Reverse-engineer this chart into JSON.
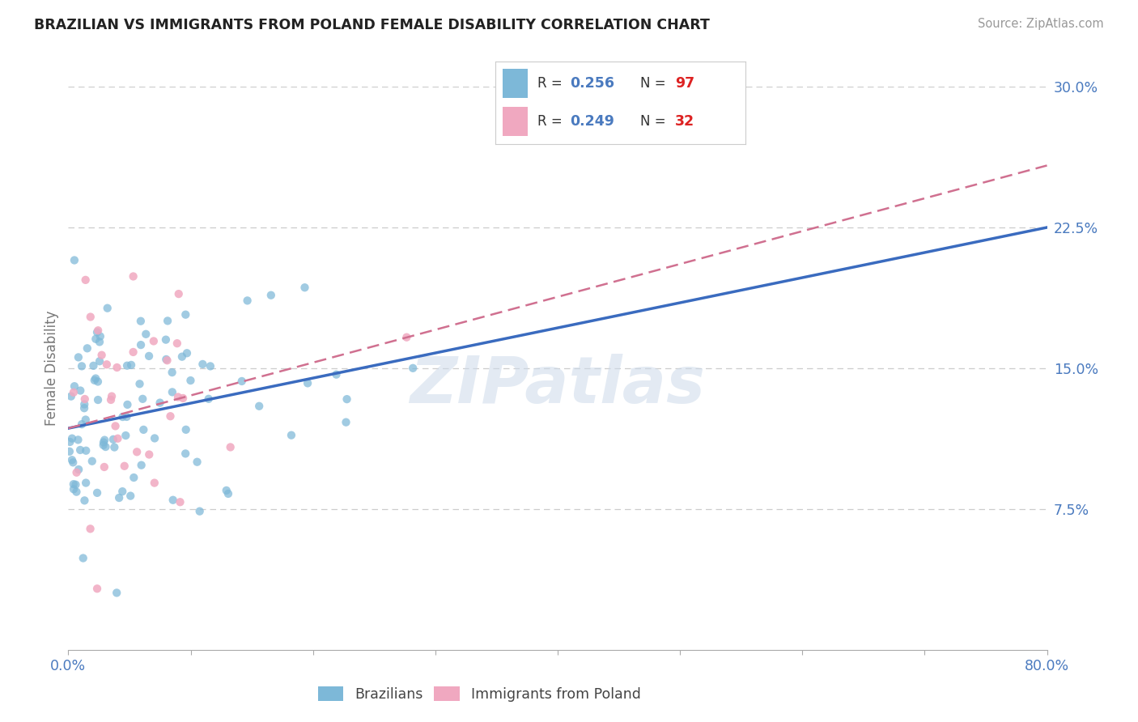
{
  "title": "BRAZILIAN VS IMMIGRANTS FROM POLAND FEMALE DISABILITY CORRELATION CHART",
  "source": "Source: ZipAtlas.com",
  "ylabel": "Female Disability",
  "xlim": [
    0.0,
    0.8
  ],
  "ylim": [
    0.0,
    0.3
  ],
  "ytick_positions": [
    0.075,
    0.15,
    0.225,
    0.3
  ],
  "ytick_labels": [
    "7.5%",
    "15.0%",
    "22.5%",
    "30.0%"
  ],
  "xtick_positions": [
    0.0,
    0.1,
    0.2,
    0.3,
    0.4,
    0.5,
    0.6,
    0.7,
    0.8
  ],
  "xtick_labels": [
    "0.0%",
    "",
    "",
    "",
    "",
    "",
    "",
    "",
    "80.0%"
  ],
  "legend_labels": [
    "Brazilians",
    "Immigrants from Poland"
  ],
  "R_brazil": 0.256,
  "N_brazil": 97,
  "R_poland": 0.249,
  "N_poland": 32,
  "brazil_scatter_color": "#7db8d8",
  "brazil_line_color": "#3a6bbf",
  "poland_scatter_color": "#f0a8c0",
  "poland_line_color": "#d07090",
  "watermark": "ZIPatlas",
  "brazil_seed": 42,
  "poland_seed": 123,
  "background_color": "#ffffff",
  "grid_color": "#cccccc",
  "title_color": "#222222",
  "tick_label_color": "#4a7abf",
  "legend_text_color": "#333333",
  "legend_value_color": "#4a7abf",
  "legend_N_color": "#dd2222",
  "brazil_line_start_x": 0.0,
  "brazil_line_end_x": 0.8,
  "brazil_line_start_y": 0.118,
  "brazil_line_end_y": 0.225,
  "poland_line_start_x": 0.0,
  "poland_line_end_x": 0.8,
  "poland_line_start_y": 0.118,
  "poland_line_end_y": 0.258
}
